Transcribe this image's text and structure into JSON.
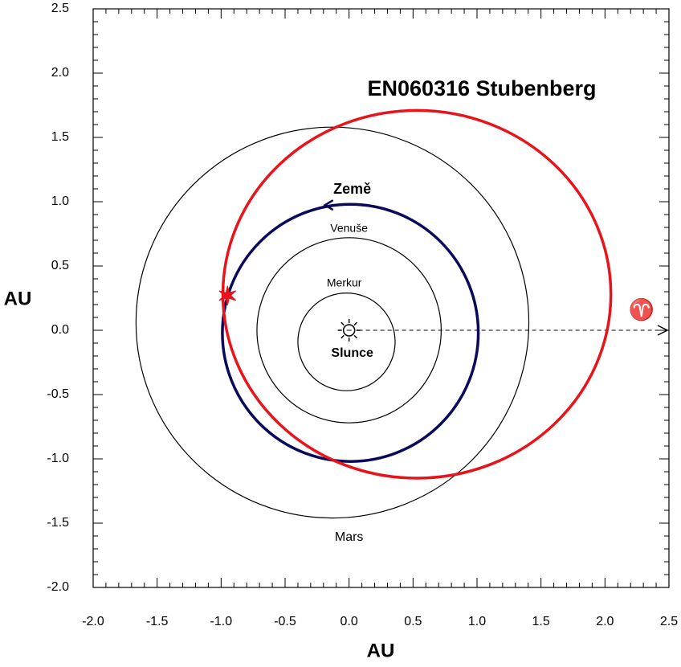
{
  "chart_data": {
    "type": "orbit",
    "title": "EN060316 Stubenberg",
    "xlabel": "AU",
    "ylabel": "AU",
    "xlim": [
      -2.0,
      2.5
    ],
    "ylim": [
      -2.0,
      2.5
    ],
    "xticks": [
      {
        "value": -2,
        "label": "-2.0"
      },
      {
        "value": -1.5,
        "label": "-1.5"
      },
      {
        "value": -1,
        "label": "-1.0"
      },
      {
        "value": -0.5,
        "label": "-0.5"
      },
      {
        "value": 0,
        "label": "0.0"
      },
      {
        "value": 0.5,
        "label": "0.5"
      },
      {
        "value": 1,
        "label": "1.0"
      },
      {
        "value": 1.5,
        "label": "1.5"
      },
      {
        "value": 2,
        "label": "2.0"
      },
      {
        "value": 2.5,
        "label": "2.5"
      }
    ],
    "yticks": [
      {
        "value": -2,
        "label": "-2.0"
      },
      {
        "value": -1.5,
        "label": "-1.5"
      },
      {
        "value": -1,
        "label": "-1.0"
      },
      {
        "value": -0.5,
        "label": "-0.5"
      },
      {
        "value": 0,
        "label": "0.0"
      },
      {
        "value": 0.5,
        "label": "0.5"
      },
      {
        "value": 1,
        "label": "1.0"
      },
      {
        "value": 1.5,
        "label": "1.5"
      },
      {
        "value": 2,
        "label": "2.0"
      },
      {
        "value": 2.5,
        "label": "2.5"
      }
    ],
    "sun_label": "Slunce",
    "equinox_label": "♈",
    "series": [
      {
        "name": "Merkur",
        "color": "#000000",
        "center": [
          -0.02,
          -0.09
        ],
        "radii": [
          0.38,
          0.38
        ]
      },
      {
        "name": "Venuše",
        "color": "#000000",
        "center": [
          0.0,
          0.0
        ],
        "radii": [
          0.72,
          0.72
        ]
      },
      {
        "name": "Země",
        "color": "#0a0a5a",
        "center": [
          0.01,
          -0.02
        ],
        "radii": [
          1.0,
          1.0
        ]
      },
      {
        "name": "Mars",
        "color": "#000000",
        "center": [
          -0.13,
          0.06
        ],
        "radii": [
          1.535,
          1.52
        ]
      },
      {
        "name": "EN060316 Stubenberg",
        "color": "#e8141c",
        "center": [
          0.53,
          0.28
        ],
        "radii": [
          1.516,
          1.43
        ]
      }
    ],
    "impact": {
      "x": -0.95,
      "y": 0.27,
      "color": "#e8141c"
    }
  }
}
